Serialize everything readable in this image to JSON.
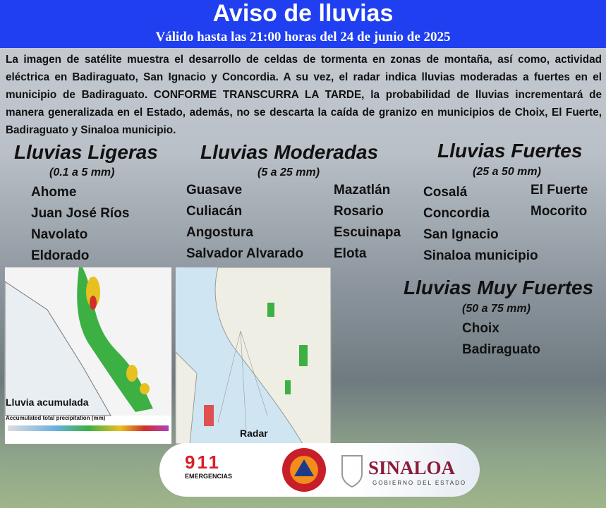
{
  "header": {
    "title": "Aviso de lluvias",
    "subtitle": "Válido hasta las 21:00 horas del 24 de junio de 2025"
  },
  "description": "La imagen de satélite muestra el desarrollo de celdas de tormenta en zonas de montaña, así como, actividad eléctrica en Badiraguato, San Ignacio y Concordia. A su vez, el radar indica lluvias moderadas a fuertes en el municipio de Badiraguato. CONFORME TRANSCURRA LA TARDE, la probabilidad de lluvias incrementará de manera generalizada en el Estado, además, no se descarta la caída de granizo en municipios de Choix, El Fuerte, Badiraguato y Sinaloa municipio.",
  "categories": [
    {
      "title": "Lluvias Ligeras",
      "range": "(0.1 a 5 mm)",
      "municipalities": [
        "Ahome",
        "Juan José Ríos",
        "Navolato",
        "Eldorado"
      ]
    },
    {
      "title": "Lluvias Moderadas",
      "range": "(5 a 25 mm)",
      "municipalities": [
        "Guasave",
        "Culiacán",
        "Angostura",
        "Salvador Alvarado",
        "Mazatlán",
        "Rosario",
        "Escuinapa",
        "Elota"
      ]
    },
    {
      "title": "Lluvias Fuertes",
      "range": "(25 a 50 mm)",
      "municipalities": [
        "Cosalá",
        "Concordia",
        "San Ignacio",
        "Sinaloa municipio",
        "El Fuerte",
        "Mocorito"
      ]
    },
    {
      "title": "Lluvias Muy Fuertes",
      "range": "(50 a 75 mm)",
      "municipalities": [
        "Choix",
        "Badiraguato"
      ]
    }
  ],
  "maps": [
    {
      "label": "Lluvia acumulada",
      "legend": "Accumulated total precipitation (mm)"
    },
    {
      "label": "Radar"
    }
  ],
  "footer": {
    "emergency_number": "911",
    "emergency_label": "EMERGENCIAS",
    "state": "SINALOA",
    "government": "GOBIERNO DEL ESTADO"
  }
}
